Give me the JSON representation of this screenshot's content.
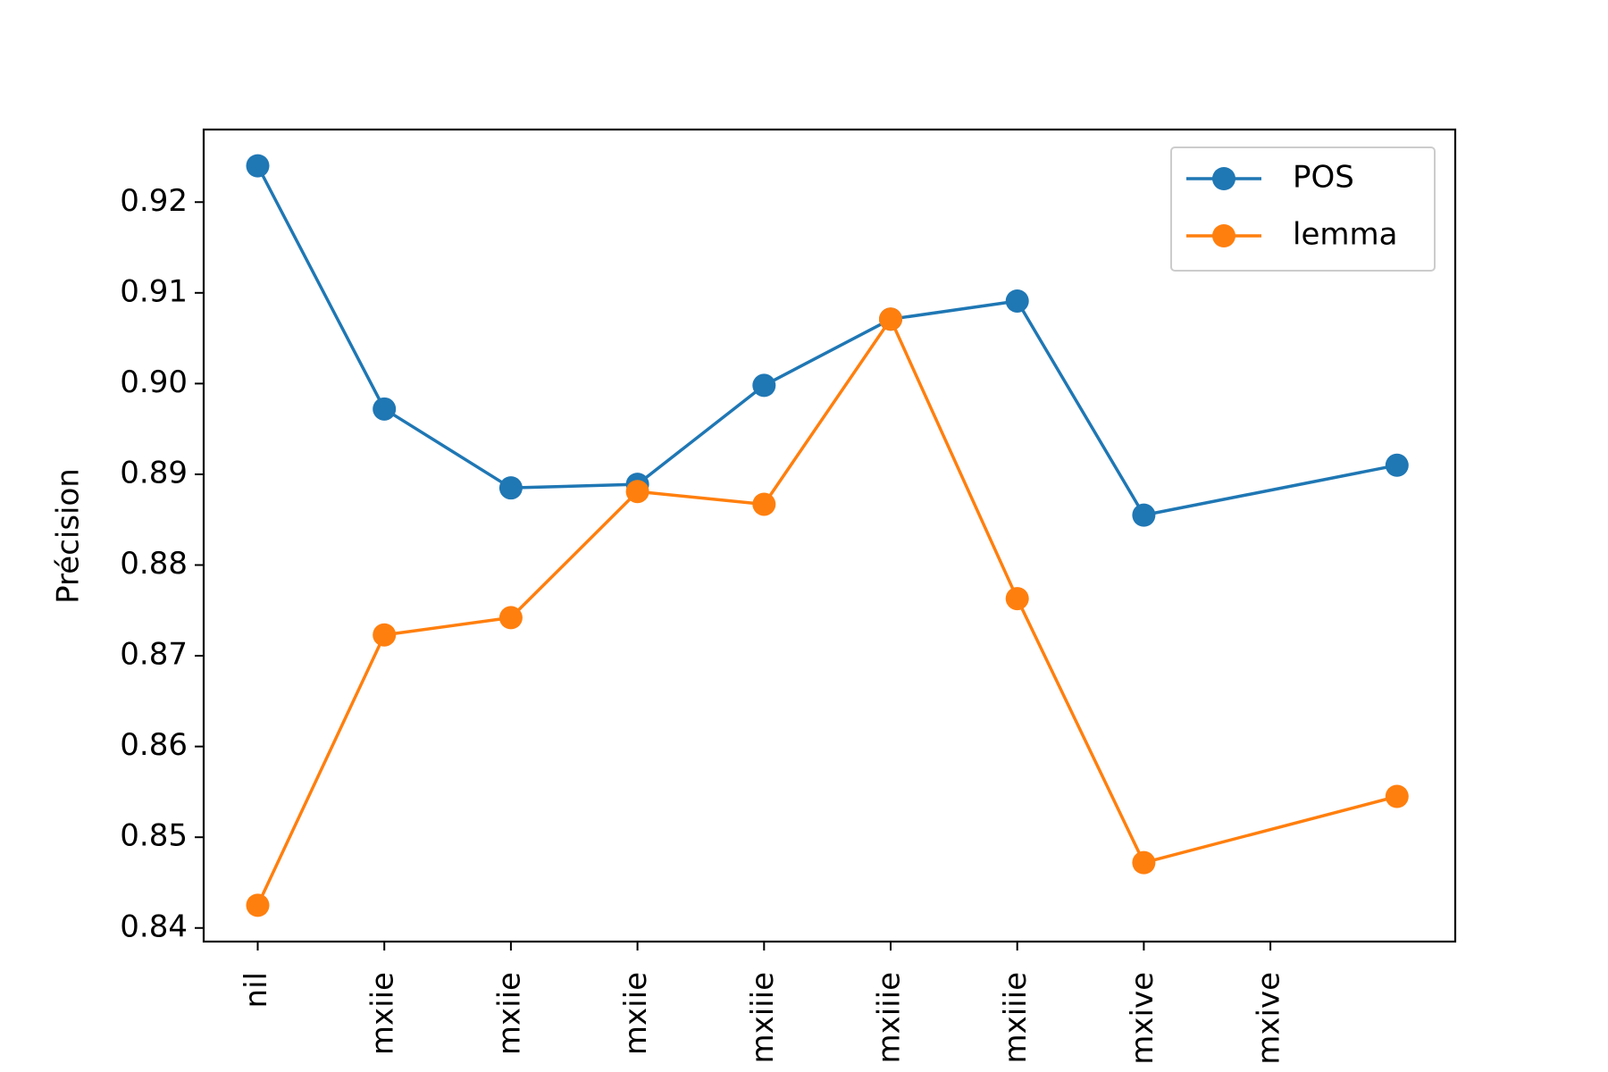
{
  "chart_data": {
    "type": "line",
    "title": "",
    "xlabel": "",
    "ylabel": "Précision",
    "categories": [
      "nil",
      "mxiie",
      "mxiie",
      "mxiie",
      "mxiiie",
      "mxiiie",
      "mxiiie",
      "mxive",
      "mxive"
    ],
    "x": [
      0,
      1,
      2,
      3,
      4,
      5,
      6,
      7,
      9
    ],
    "ylim": [
      0.8385,
      0.928
    ],
    "yticks": [
      0.84,
      0.85,
      0.86,
      0.87,
      0.88,
      0.89,
      0.9,
      0.91,
      0.92
    ],
    "ytick_labels": [
      "0.84",
      "0.85",
      "0.86",
      "0.87",
      "0.88",
      "0.89",
      "0.90",
      "0.91",
      "0.92"
    ],
    "xticks": [
      0,
      1,
      2,
      3,
      4,
      5,
      6,
      7,
      8
    ],
    "grid": false,
    "legend": "top-right",
    "series": [
      {
        "name": "POS",
        "color": "#1f77b4",
        "values": [
          0.924,
          0.8972,
          0.8885,
          0.8889,
          0.8998,
          0.9071,
          0.9091,
          0.8855,
          0.891
        ]
      },
      {
        "name": "lemma",
        "color": "#ff7f0e",
        "values": [
          0.8425,
          0.8723,
          0.8742,
          0.8881,
          0.8867,
          0.9071,
          0.8763,
          0.8472,
          0.8545
        ]
      }
    ]
  }
}
